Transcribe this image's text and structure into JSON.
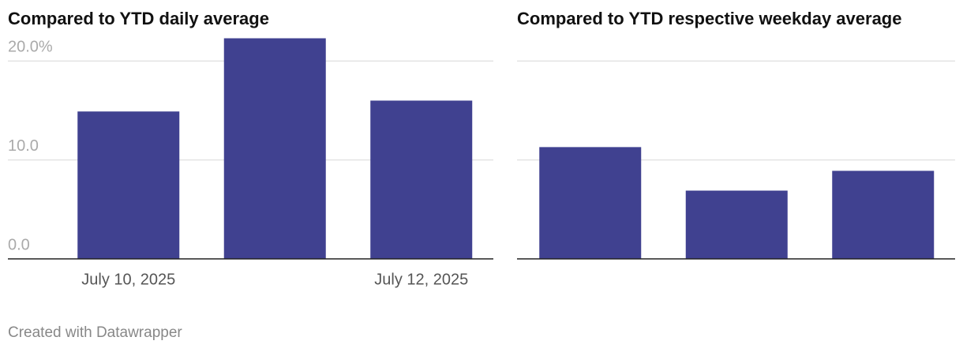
{
  "chart_data": [
    {
      "type": "bar",
      "title": "Compared to YTD daily average",
      "categories": [
        "July 10, 2025",
        null,
        "July 12, 2025"
      ],
      "values": [
        14.9,
        22.3,
        16.0
      ],
      "color": "#404190",
      "ylim": [
        0,
        22.5
      ],
      "yticks": [
        {
          "value": 0,
          "label": "0.0"
        },
        {
          "value": 10,
          "label": "10.0"
        },
        {
          "value": 20,
          "label": "20.0%"
        }
      ],
      "grid": true,
      "tick_labels": true
    },
    {
      "type": "bar",
      "title": "Compared to YTD respective weekday average",
      "values": [
        11.3,
        6.9,
        8.9
      ],
      "color": "#404190",
      "ylim": [
        0,
        22.5
      ],
      "yticks": [
        0,
        10,
        20
      ],
      "grid": true,
      "tick_labels": false
    }
  ],
  "footer": "Created with Datawrapper"
}
